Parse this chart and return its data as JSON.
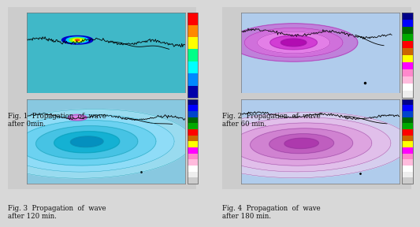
{
  "figure_bg": "#d8d8d8",
  "panel_bg_1": "#40b8c8",
  "panel_bg_2": "#b0ccec",
  "panel_bg_3": "#88c8e0",
  "panel_bg_4": "#b0ccec",
  "captions": [
    "Fig. 1  Propagation  of  wave\nafter 0min.",
    "Fig. 2  Propagation  of  wave\nafter 60 min.",
    "Fig. 3  Propagation  of  wave\nafter 120 min.",
    "Fig. 4  Propagation  of  wave\nafter 180 min."
  ],
  "cb1_colors": [
    "#ff0000",
    "#ff8800",
    "#ffff00",
    "#00ff88",
    "#00ffff",
    "#0088ff",
    "#0000aa"
  ],
  "cb2_colors": [
    "#000088",
    "#0000ff",
    "#006600",
    "#00aa00",
    "#ff0000",
    "#cc6600",
    "#ffff00",
    "#ff00ff",
    "#ff88cc",
    "#ffbbdd",
    "#ffffff",
    "#eeeeee"
  ],
  "cb34_colors": [
    "#000088",
    "#0000ff",
    "#0044cc",
    "#006600",
    "#00aa00",
    "#ff0000",
    "#cc6600",
    "#ffff00",
    "#ff00ff",
    "#ff88cc",
    "#ffbbdd",
    "#ffffff",
    "#eeeeee",
    "#cccccc"
  ],
  "text_color": "#111111",
  "border_color": "#aaaaaa"
}
